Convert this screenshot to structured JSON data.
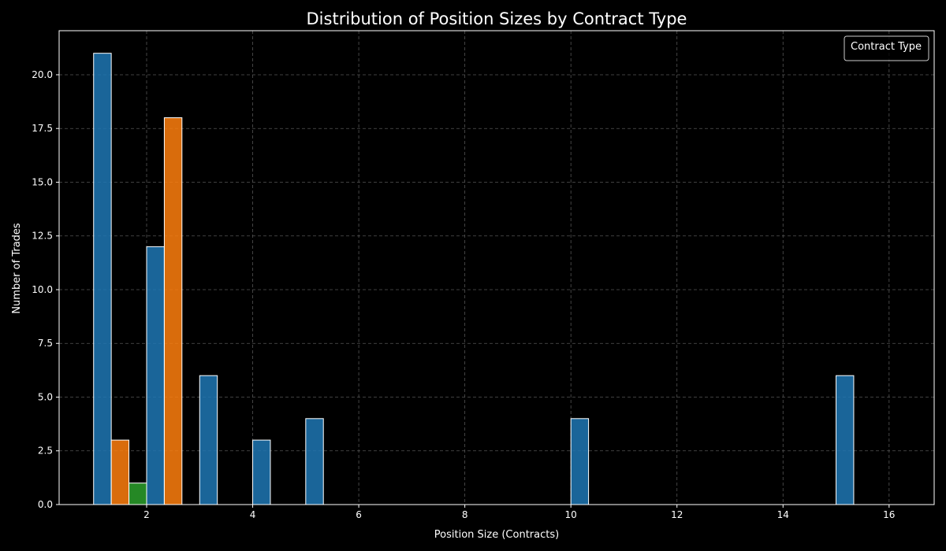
{
  "chart_data": {
    "type": "bar",
    "title": "Distribution of Position Sizes by Contract Type",
    "xlabel": "Position Size (Contracts)",
    "ylabel": "Number of Trades",
    "xlim": [
      0.35,
      16.85
    ],
    "ylim": [
      0,
      22.05
    ],
    "x_ticks": [
      2,
      4,
      6,
      8,
      10,
      12,
      14,
      16
    ],
    "y_ticks": [
      0,
      2.5,
      5,
      7.5,
      10,
      12.5,
      15,
      17.5,
      20
    ],
    "y_tick_labels": [
      "0.0",
      "2.5",
      "5.0",
      "7.5",
      "10.0",
      "12.5",
      "15.0",
      "17.5",
      "20.0"
    ],
    "grid": true,
    "legend": {
      "title": "Contract Type",
      "placement": "top-right"
    },
    "bar_width": 0.333,
    "series": [
      {
        "color": "#1f77b4",
        "points": [
          {
            "x": 1.0,
            "value": 21
          },
          {
            "x": 2.0,
            "value": 12
          },
          {
            "x": 3.0,
            "value": 6
          },
          {
            "x": 4.0,
            "value": 3
          },
          {
            "x": 5.0,
            "value": 4
          },
          {
            "x": 10.0,
            "value": 4
          },
          {
            "x": 15.0,
            "value": 6
          }
        ]
      },
      {
        "color": "#ff7f0e",
        "points": [
          {
            "x": 1.333,
            "value": 3
          },
          {
            "x": 2.333,
            "value": 18
          }
        ]
      },
      {
        "color": "#2ca02c",
        "points": [
          {
            "x": 1.667,
            "value": 1
          }
        ]
      }
    ]
  }
}
